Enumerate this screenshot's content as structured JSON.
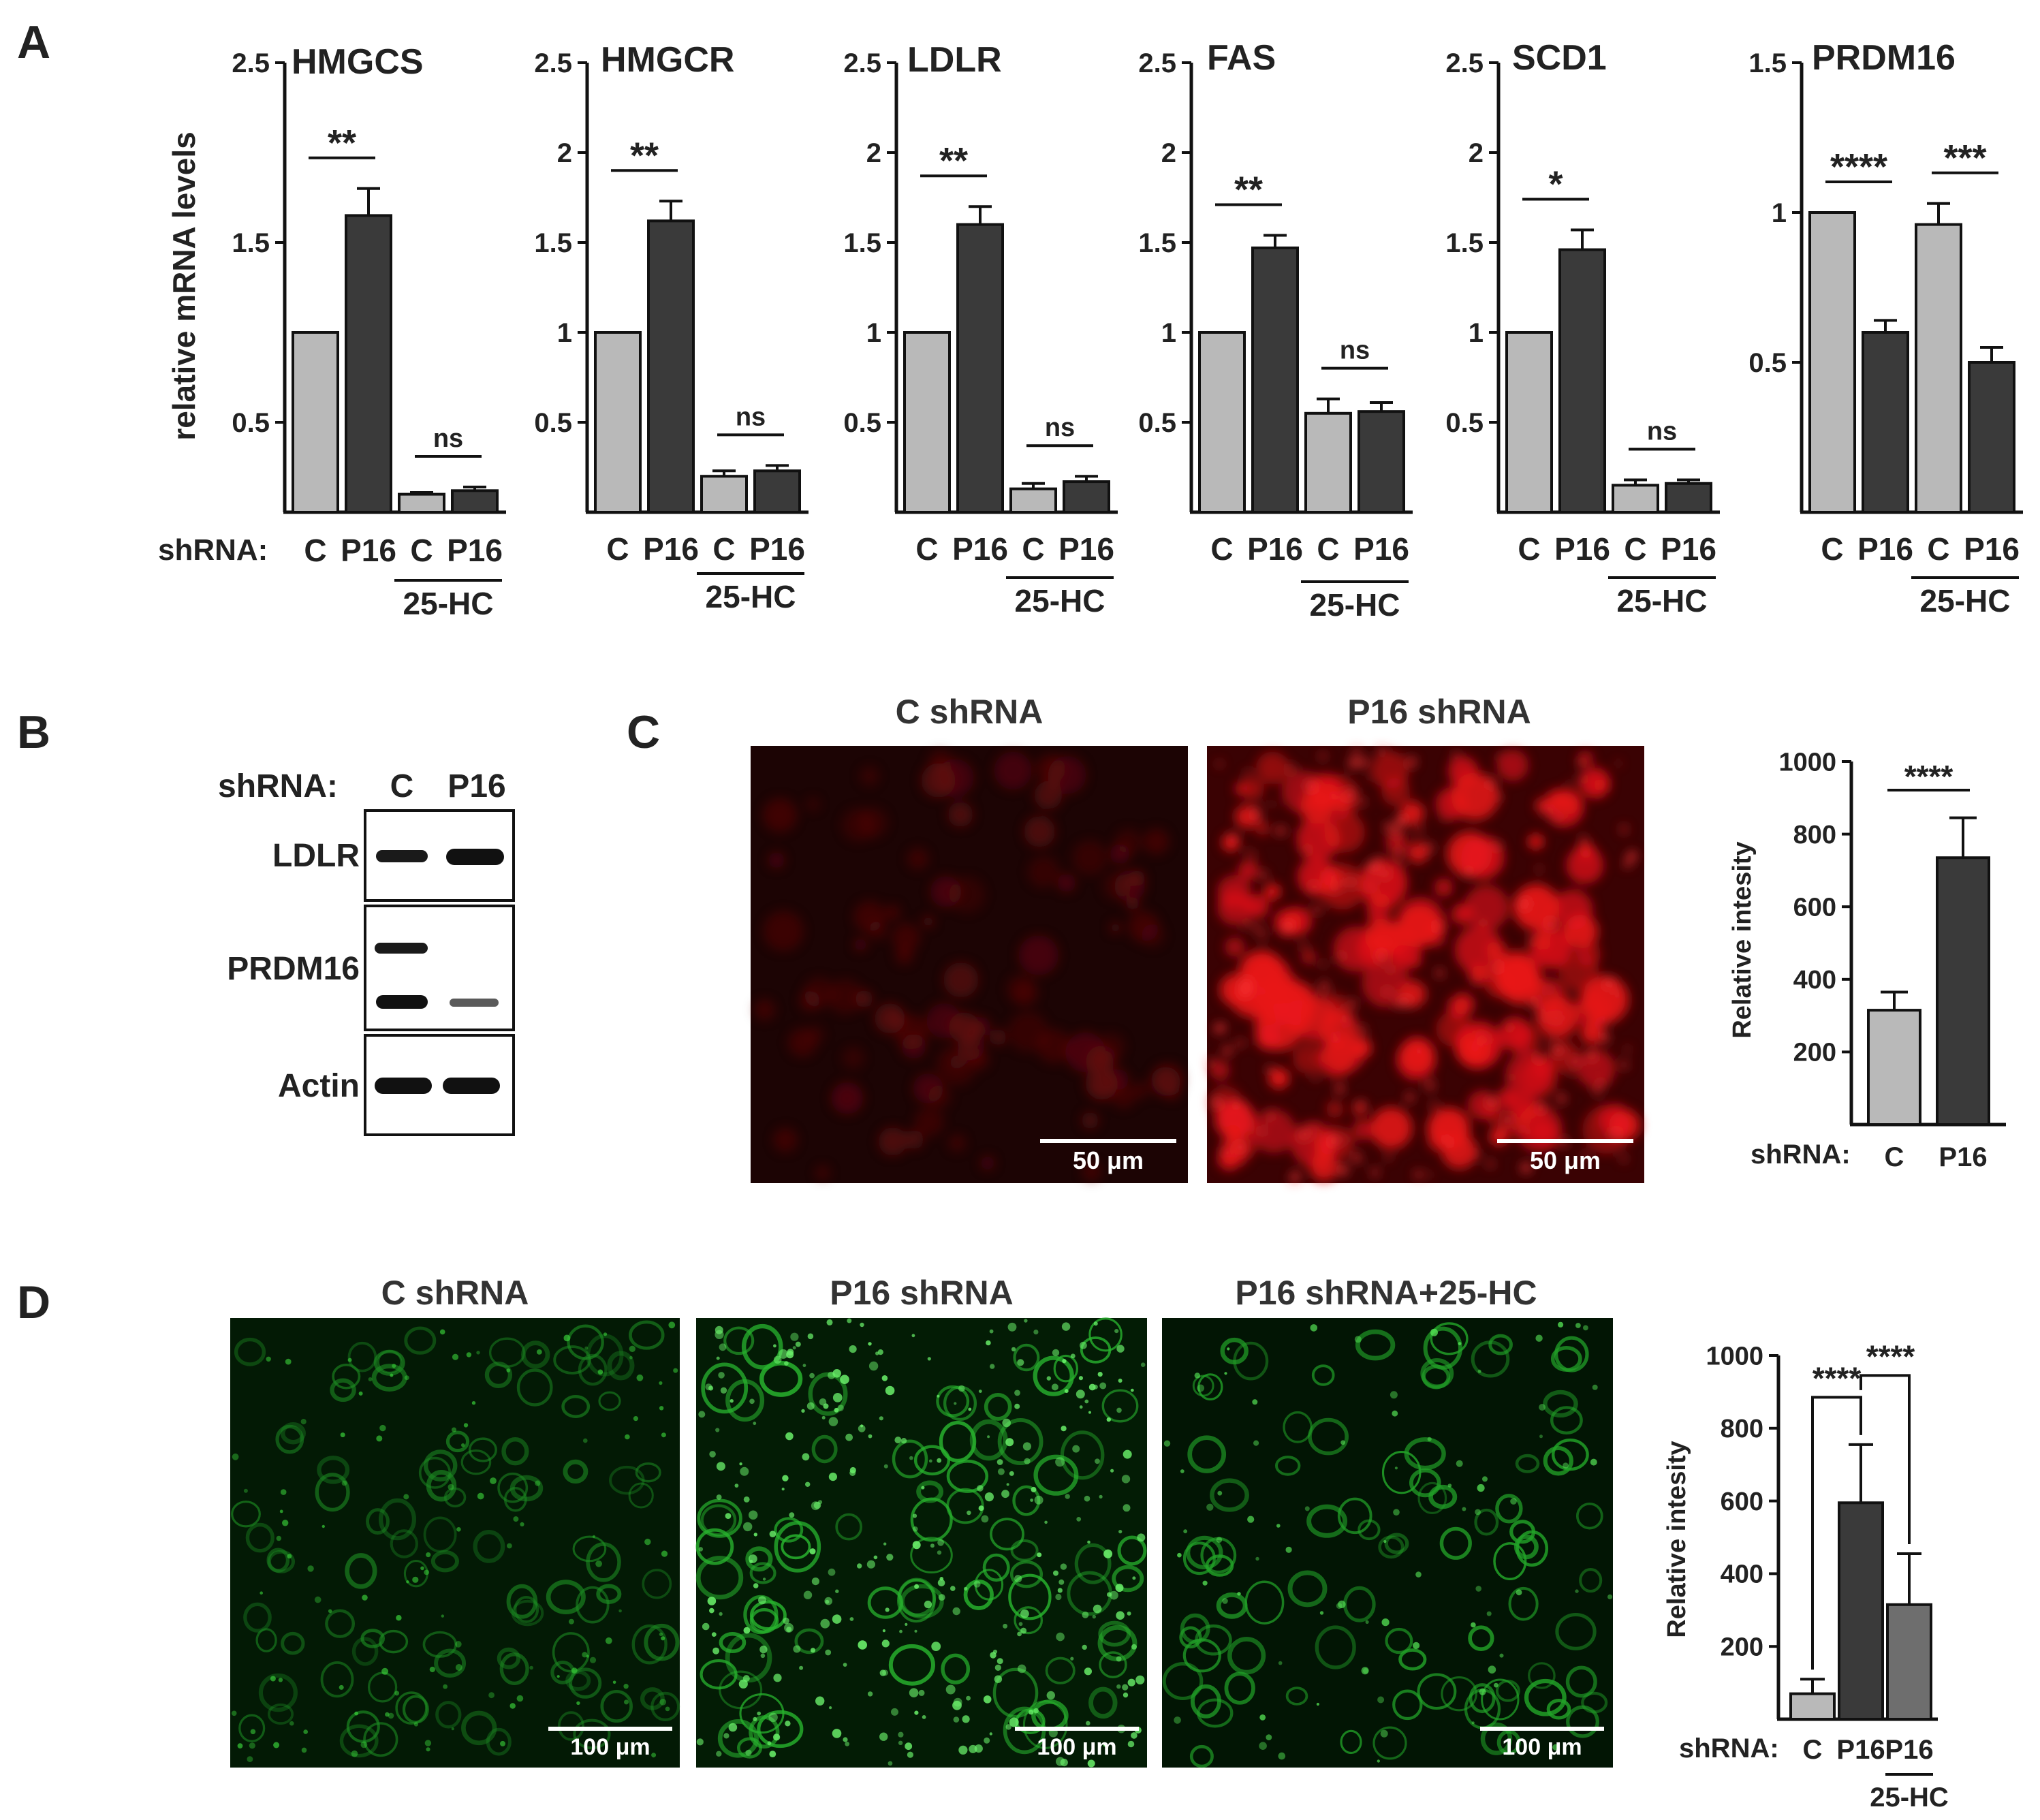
{
  "figure": {
    "panel_labels": [
      "A",
      "B",
      "C",
      "D"
    ],
    "colors": {
      "control": "#b9b9b9",
      "knockdown": "#3a3a3a",
      "p16_25hc_d": "#6e6e6e",
      "red_signal": "#e8141a",
      "green_signal": "#1ec81e"
    }
  },
  "panel_a": {
    "ylabel": "relative mRNA levels",
    "shrna_label": "shRNA:",
    "treatment_label": "25-HC",
    "tick_labels": [
      "C",
      "P16",
      "C",
      "P16"
    ]
  },
  "panel_b": {
    "shrna_label": "shRNA:",
    "lanes": [
      "C",
      "P16"
    ],
    "rows": [
      "LDLR",
      "PRDM16",
      "Actin"
    ]
  },
  "panel_c": {
    "image_titles": [
      "C shRNA",
      "P16 shRNA"
    ],
    "scale_bar": "50 μm"
  },
  "panel_d": {
    "image_titles": [
      "C shRNA",
      "P16 shRNA",
      "P16 shRNA+25-HC"
    ],
    "scale_bar": "100 μm"
  },
  "chart_data": [
    {
      "type": "bar",
      "panel": "A",
      "title": "HMGCS",
      "categories": [
        "C",
        "P16",
        "C",
        "P16"
      ],
      "group_label": "25-HC",
      "values": [
        1.0,
        1.65,
        0.1,
        0.12
      ],
      "errors": [
        0,
        0.15,
        0.01,
        0.02
      ],
      "ylim": [
        0,
        2.5
      ],
      "yticks": [
        0.5,
        1.5,
        2.5
      ],
      "significance": [
        {
          "pair": [
            0,
            1
          ],
          "label": "**"
        },
        {
          "pair": [
            2,
            3
          ],
          "label": "ns"
        }
      ]
    },
    {
      "type": "bar",
      "panel": "A",
      "title": "HMGCR",
      "categories": [
        "C",
        "P16",
        "C",
        "P16"
      ],
      "group_label": "25-HC",
      "values": [
        1.0,
        1.62,
        0.2,
        0.23
      ],
      "errors": [
        0,
        0.11,
        0.03,
        0.03
      ],
      "ylim": [
        0,
        2.5
      ],
      "yticks": [
        0.5,
        1.0,
        1.5,
        2.0,
        2.5
      ],
      "significance": [
        {
          "pair": [
            0,
            1
          ],
          "label": "**"
        },
        {
          "pair": [
            2,
            3
          ],
          "label": "ns"
        }
      ]
    },
    {
      "type": "bar",
      "panel": "A",
      "title": "LDLR",
      "categories": [
        "C",
        "P16",
        "C",
        "P16"
      ],
      "group_label": "25-HC",
      "values": [
        1.0,
        1.6,
        0.13,
        0.17
      ],
      "errors": [
        0,
        0.1,
        0.03,
        0.03
      ],
      "ylim": [
        0,
        2.5
      ],
      "yticks": [
        0.5,
        1.0,
        1.5,
        2.0,
        2.5
      ],
      "significance": [
        {
          "pair": [
            0,
            1
          ],
          "label": "**"
        },
        {
          "pair": [
            2,
            3
          ],
          "label": "ns"
        }
      ]
    },
    {
      "type": "bar",
      "panel": "A",
      "title": "FAS",
      "categories": [
        "C",
        "P16",
        "C",
        "P16"
      ],
      "group_label": "25-HC",
      "values": [
        1.0,
        1.47,
        0.55,
        0.56
      ],
      "errors": [
        0,
        0.07,
        0.08,
        0.05
      ],
      "ylim": [
        0,
        2.5
      ],
      "yticks": [
        0.5,
        1.0,
        1.5,
        2.0,
        2.5
      ],
      "significance": [
        {
          "pair": [
            0,
            1
          ],
          "label": "**"
        },
        {
          "pair": [
            2,
            3
          ],
          "label": "ns"
        }
      ]
    },
    {
      "type": "bar",
      "panel": "A",
      "title": "SCD1",
      "categories": [
        "C",
        "P16",
        "C",
        "P16"
      ],
      "group_label": "25-HC",
      "values": [
        1.0,
        1.46,
        0.15,
        0.16
      ],
      "errors": [
        0,
        0.11,
        0.03,
        0.02
      ],
      "ylim": [
        0,
        2.5
      ],
      "yticks": [
        0.5,
        1.0,
        1.5,
        2.0,
        2.5
      ],
      "significance": [
        {
          "pair": [
            0,
            1
          ],
          "label": "*"
        },
        {
          "pair": [
            2,
            3
          ],
          "label": "ns"
        }
      ]
    },
    {
      "type": "bar",
      "panel": "A",
      "title": "PRDM16",
      "categories": [
        "C",
        "P16",
        "C",
        "P16"
      ],
      "group_label": "25-HC",
      "values": [
        1.0,
        0.6,
        0.96,
        0.5
      ],
      "errors": [
        0,
        0.04,
        0.07,
        0.05
      ],
      "ylim": [
        0,
        1.5
      ],
      "yticks": [
        0.5,
        1.0,
        1.5
      ],
      "significance": [
        {
          "pair": [
            0,
            1
          ],
          "label": "****"
        },
        {
          "pair": [
            2,
            3
          ],
          "label": "***"
        }
      ]
    },
    {
      "type": "bar",
      "panel": "C",
      "ylabel": "Relative intesity",
      "shrna_label": "shRNA:",
      "categories": [
        "C",
        "P16"
      ],
      "values": [
        315,
        735
      ],
      "errors": [
        50,
        110
      ],
      "ylim": [
        0,
        1000
      ],
      "yticks": [
        200,
        400,
        600,
        800,
        1000
      ],
      "significance": [
        {
          "pair": [
            0,
            1
          ],
          "label": "****"
        }
      ]
    },
    {
      "type": "bar",
      "panel": "D",
      "ylabel": "Relative intesity",
      "shrna_label": "shRNA:",
      "categories": [
        "C",
        "P16",
        "P16"
      ],
      "group_label": "25-HC",
      "values": [
        70,
        595,
        315
      ],
      "errors": [
        40,
        160,
        140
      ],
      "ylim": [
        0,
        1000
      ],
      "yticks": [
        200,
        400,
        600,
        800,
        1000
      ],
      "significance": [
        {
          "pair": [
            0,
            1
          ],
          "label": "****"
        },
        {
          "pair": [
            1,
            2
          ],
          "label": "****"
        }
      ]
    }
  ]
}
